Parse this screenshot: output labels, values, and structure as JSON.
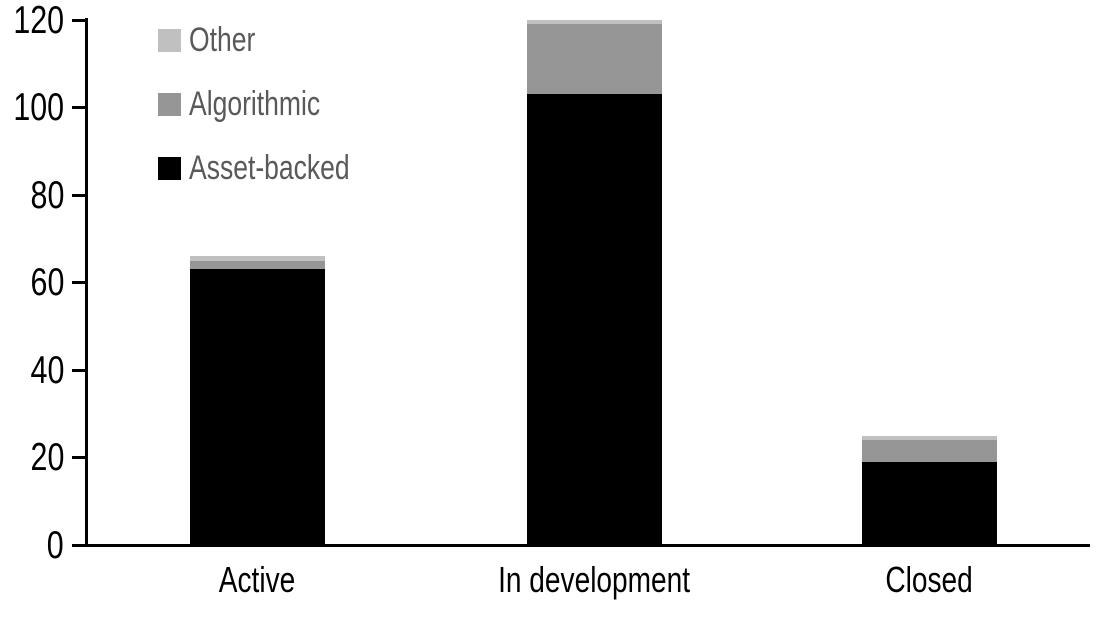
{
  "chart_data": {
    "type": "bar",
    "stacked": true,
    "title": "",
    "xlabel": "",
    "ylabel": "",
    "categories": [
      "Active",
      "In development",
      "Closed"
    ],
    "series": [
      {
        "name": "Asset-backed",
        "color": "#000000",
        "values": [
          63,
          103,
          19
        ]
      },
      {
        "name": "Algorithmic",
        "color": "#969696",
        "values": [
          2,
          16,
          5
        ]
      },
      {
        "name": "Other",
        "color": "#c0c0c0",
        "values": [
          1,
          1,
          1
        ]
      }
    ],
    "totals": [
      66,
      120,
      25
    ],
    "ylim": [
      0,
      120
    ],
    "yticks": [
      0,
      20,
      40,
      60,
      80,
      100,
      120
    ],
    "ytick_labels": [
      "0",
      "20",
      "40",
      "60",
      "80",
      "100",
      "120"
    ],
    "grid": false,
    "legend_position": "top-left",
    "legend_order": [
      "Other",
      "Algorithmic",
      "Asset-backed"
    ]
  },
  "colors": {
    "axis": "#000000",
    "tick_label_text": "#000000",
    "category_label_text": "#000000",
    "legend_text": "#595959",
    "background": "#ffffff",
    "asset_backed": "#000000",
    "algorithmic": "#969696",
    "other": "#c0c0c0"
  }
}
